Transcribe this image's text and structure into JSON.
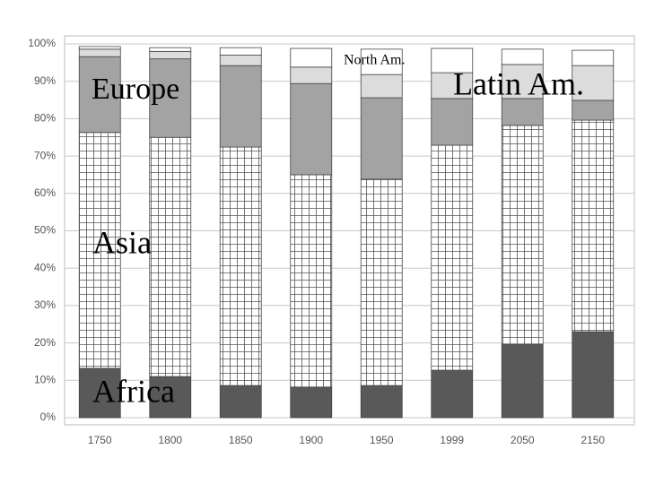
{
  "chart_data": {
    "type": "stacked_bar",
    "categories": [
      "1750",
      "1800",
      "1850",
      "1900",
      "1950",
      "1999",
      "2050",
      "2150"
    ],
    "series": [
      {
        "name": "Africa",
        "color": "#595959",
        "values": [
          13.2,
          11,
          8.6,
          8.2,
          8.6,
          12.7,
          19.7,
          23
        ]
      },
      {
        "name": "Asia",
        "color": "#ffffff",
        "pattern": "grid",
        "values": [
          63.1,
          64,
          63.8,
          56.8,
          55.2,
          60.2,
          58.5,
          56.6
        ]
      },
      {
        "name": "Europe",
        "color": "#a3a3a3",
        "values": [
          20.3,
          21,
          21.8,
          24.4,
          21.8,
          12.5,
          7.2,
          5.3
        ]
      },
      {
        "name": "Latin Am.",
        "color": "#dcdcdc",
        "values": [
          2,
          2,
          2.8,
          4.4,
          6.2,
          6.9,
          9.1,
          9.3
        ]
      },
      {
        "name": "North Am.",
        "color": "#ffffff",
        "values": [
          0.7,
          1,
          2,
          5,
          6.8,
          6.5,
          4.1,
          4.1
        ]
      }
    ],
    "ylim": [
      0,
      100
    ],
    "yticks": [
      {
        "value": 0,
        "label": "0%"
      },
      {
        "value": 10,
        "label": "10%"
      },
      {
        "value": 20,
        "label": "20%"
      },
      {
        "value": 30,
        "label": "30%"
      },
      {
        "value": 40,
        "label": "40%"
      },
      {
        "value": 50,
        "label": "50%"
      },
      {
        "value": 60,
        "label": "60%"
      },
      {
        "value": 70,
        "label": "70%"
      },
      {
        "value": 80,
        "label": "80%"
      },
      {
        "value": 90,
        "label": "90%"
      },
      {
        "value": 100,
        "label": "100%"
      }
    ],
    "grid": true
  }
}
